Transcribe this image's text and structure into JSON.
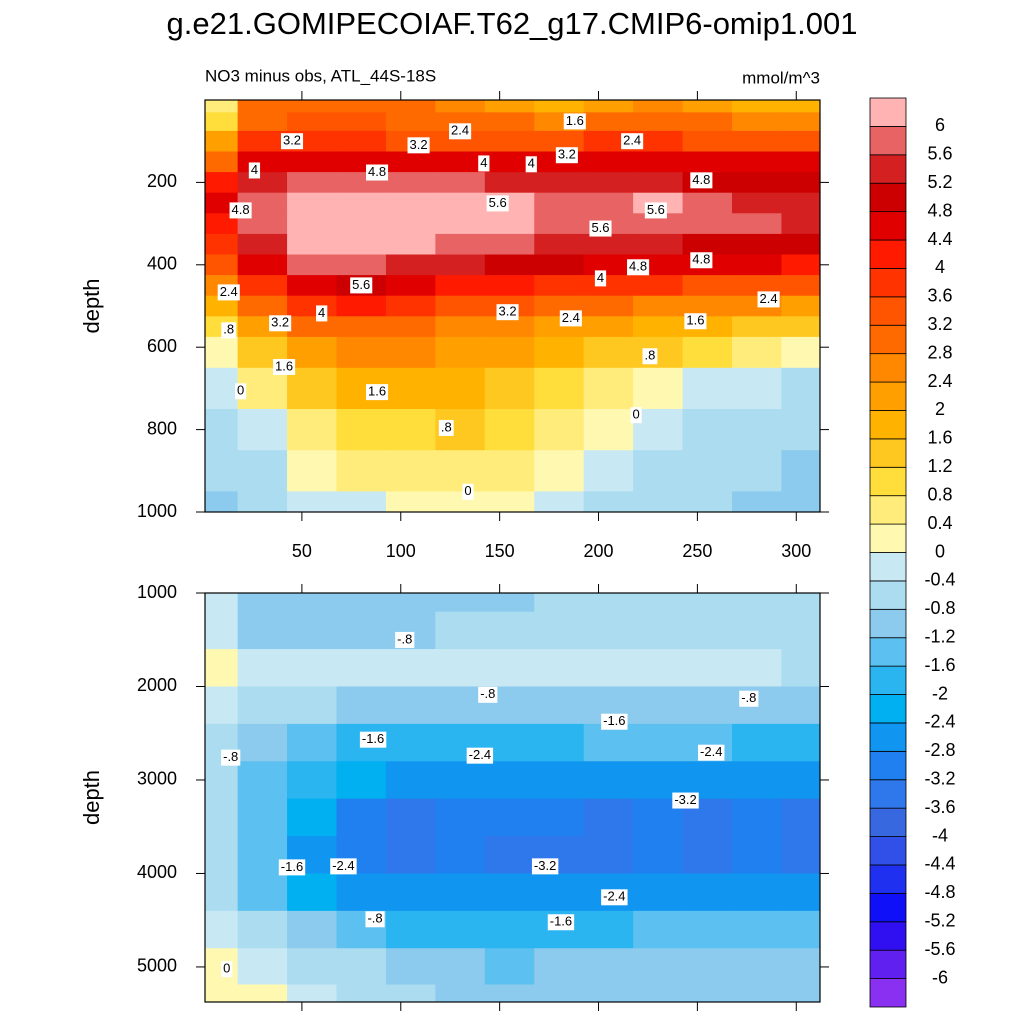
{
  "title": "g.e21.GOMIPECOIAF.T62_g17.CMIP6-omip1.001",
  "subtitle": "NO3 minus obs, ATL_44S-18S",
  "units": "mmol/m^3",
  "colorbar": {
    "levels": [
      -6,
      -5.6,
      -5.2,
      -4.8,
      -4.4,
      -4,
      -3.6,
      -3.2,
      -2.8,
      -2.4,
      -2,
      -1.6,
      -1.2,
      -0.8,
      -0.4,
      0,
      0.4,
      0.8,
      1.2,
      1.6,
      2,
      2.4,
      2.8,
      3.2,
      3.6,
      4,
      4.4,
      4.8,
      5.2,
      5.6,
      6
    ],
    "colors": [
      "#8a30f0",
      "#6020f0",
      "#3010f0",
      "#1010f8",
      "#2030f0",
      "#3050e8",
      "#3868e0",
      "#2f78ec",
      "#2080f0",
      "#1096f0",
      "#00b0f0",
      "#2ab4f0",
      "#5cc0f0",
      "#8ccbee",
      "#acdcf0",
      "#c8e8f4",
      "#fff8b0",
      "#ffec7a",
      "#ffdd3a",
      "#ffc820",
      "#ffb300",
      "#ffa000",
      "#ff8800",
      "#ff6a00",
      "#ff5500",
      "#ff3300",
      "#ff1a00",
      "#e00000",
      "#cc0000",
      "#d42020",
      "#e86464",
      "#ffb3b3"
    ]
  },
  "chart_data": [
    {
      "type": "contour",
      "ylabel": "depth",
      "xlim": [
        1,
        312
      ],
      "ylim": [
        1000,
        0
      ],
      "xticks": [
        50,
        100,
        150,
        200,
        250,
        300
      ],
      "yticks": [
        200,
        400,
        600,
        800,
        1000
      ],
      "show_xtick_labels": true,
      "x": [
        5,
        30,
        55,
        80,
        105,
        130,
        155,
        180,
        205,
        230,
        255,
        280,
        305
      ],
      "depth": [
        10,
        50,
        100,
        150,
        200,
        250,
        300,
        350,
        400,
        450,
        500,
        550,
        600,
        700,
        800,
        900,
        1000
      ],
      "z": [
        [
          0.5,
          2.8,
          3,
          3,
          2.8,
          2.6,
          2,
          1.8,
          2,
          2.4,
          2,
          1.8,
          1.8
        ],
        [
          1,
          3,
          3.2,
          3.2,
          3,
          2.8,
          2.8,
          2.6,
          2.8,
          3,
          2.8,
          2.6,
          2.6
        ],
        [
          2,
          3.6,
          3.6,
          3.6,
          3.4,
          3.4,
          3.4,
          3.4,
          3.6,
          3.6,
          3.4,
          3.4,
          3.4
        ],
        [
          3,
          4.6,
          4.6,
          4.6,
          4.4,
          4.4,
          4.4,
          4.4,
          4.4,
          4.4,
          4.4,
          4.4,
          4.4
        ],
        [
          4,
          5.4,
          5.6,
          5.8,
          5.6,
          5.6,
          5.4,
          5.2,
          5.2,
          5.2,
          5,
          5,
          5
        ],
        [
          4.4,
          5.8,
          6.4,
          6.5,
          6.4,
          6.3,
          6.2,
          5.8,
          5.7,
          6,
          5.6,
          5.4,
          5.2
        ],
        [
          4.2,
          5.6,
          6.5,
          6.6,
          6.5,
          6.3,
          6.2,
          5.8,
          5.7,
          5.9,
          5.6,
          5.6,
          5.2
        ],
        [
          3.8,
          5.2,
          6.3,
          6.3,
          6.2,
          5.8,
          5.6,
          5.4,
          5.2,
          5.2,
          5,
          5,
          4.8
        ],
        [
          3.2,
          4.6,
          5.6,
          5.6,
          5.4,
          5.2,
          5,
          4.8,
          4.6,
          4.6,
          4.4,
          4.4,
          4.2
        ],
        [
          2.6,
          3.6,
          4.6,
          4.8,
          4.6,
          4.2,
          4,
          3.9,
          3.8,
          3.6,
          3.4,
          3.4,
          3.2
        ],
        [
          1.6,
          2.8,
          3.8,
          4,
          3.6,
          3.4,
          3.2,
          3,
          2.8,
          2.6,
          2.4,
          2.4,
          2.2
        ],
        [
          0.8,
          2,
          2.8,
          3,
          2.8,
          2.6,
          2.4,
          2.2,
          2,
          1.8,
          1.6,
          1.4,
          1.2
        ],
        [
          0.2,
          1.4,
          2.2,
          2.4,
          2.4,
          2.2,
          2,
          1.8,
          1.4,
          1.2,
          0.9,
          0.6,
          0.3
        ],
        [
          -0.4,
          0.4,
          1.2,
          1.6,
          1.8,
          1.6,
          1.4,
          1,
          0.6,
          0.2,
          -0.2,
          -0.4,
          -0.6
        ],
        [
          -0.6,
          -0.2,
          0.5,
          0.9,
          1.1,
          1.2,
          0.8,
          0.4,
          0,
          -0.3,
          -0.5,
          -0.6,
          -0.8
        ],
        [
          -0.8,
          -0.5,
          0,
          0.4,
          0.6,
          0.6,
          0.4,
          0,
          -0.3,
          -0.5,
          -0.6,
          -0.8,
          -1
        ],
        [
          -1,
          -0.7,
          -0.4,
          -0.1,
          0.1,
          0.2,
          0.1,
          -0.2,
          -0.5,
          -0.7,
          -0.8,
          -1,
          -1.2
        ]
      ],
      "contour_labels": [
        {
          "x": 45,
          "y": 100,
          "value": 3.2
        },
        {
          "x": 130,
          "y": 76,
          "value": 2.4
        },
        {
          "x": 109,
          "y": 110,
          "value": 3.2
        },
        {
          "x": 188,
          "y": 52,
          "value": 1.6
        },
        {
          "x": 217,
          "y": 100,
          "value": 2.4
        },
        {
          "x": 184,
          "y": 134,
          "value": 3.2
        },
        {
          "x": 142,
          "y": 154,
          "value": 4
        },
        {
          "x": 166,
          "y": 156,
          "value": 4
        },
        {
          "x": 26,
          "y": 171,
          "value": 4
        },
        {
          "x": 88,
          "y": 176,
          "value": 4.8
        },
        {
          "x": 19,
          "y": 268,
          "value": 4.8
        },
        {
          "x": 149,
          "y": 251,
          "value": 5.6
        },
        {
          "x": 229,
          "y": 268,
          "value": 5.6
        },
        {
          "x": 252,
          "y": 195,
          "value": 4.8
        },
        {
          "x": 201,
          "y": 312,
          "value": 5.6
        },
        {
          "x": 252,
          "y": 389,
          "value": 4.8
        },
        {
          "x": 220,
          "y": 406,
          "value": 4.8
        },
        {
          "x": 201,
          "y": 433,
          "value": 4
        },
        {
          "x": 80,
          "y": 450,
          "value": 5.6
        },
        {
          "x": 13,
          "y": 467,
          "value": 2.4
        },
        {
          "x": 286,
          "y": 484,
          "value": 2.4
        },
        {
          "x": 154,
          "y": 515,
          "value": 3.2
        },
        {
          "x": 186,
          "y": 530,
          "value": 2.4
        },
        {
          "x": 60,
          "y": 518,
          "value": 4
        },
        {
          "x": 39,
          "y": 542,
          "value": 3.2
        },
        {
          "x": 249,
          "y": 537,
          "value": 1.6
        },
        {
          "x": 13,
          "y": 559,
          "value": 0.8,
          "label": ".8"
        },
        {
          "x": 41,
          "y": 648,
          "value": 1.6
        },
        {
          "x": 226,
          "y": 622,
          "value": 0.8,
          "label": ".8"
        },
        {
          "x": 88,
          "y": 709,
          "value": 1.6
        },
        {
          "x": 19,
          "y": 707,
          "value": 0
        },
        {
          "x": 219,
          "y": 765,
          "value": 0
        },
        {
          "x": 123,
          "y": 796,
          "value": 0.8,
          "label": ".8"
        },
        {
          "x": 134,
          "y": 951,
          "value": 0
        }
      ]
    },
    {
      "type": "contour",
      "ylabel": "depth",
      "xlim": [
        1,
        312
      ],
      "ylim": [
        5375,
        1000
      ],
      "xticks": [
        50,
        100,
        150,
        200,
        250,
        300
      ],
      "yticks": [
        1000,
        2000,
        3000,
        4000,
        5000
      ],
      "show_xtick_labels": false,
      "x": [
        5,
        30,
        55,
        80,
        105,
        130,
        155,
        180,
        205,
        230,
        255,
        280,
        305
      ],
      "depth": [
        1000,
        1400,
        1800,
        2200,
        2600,
        3000,
        3400,
        3800,
        4200,
        4600,
        5000,
        5375
      ],
      "z": [
        [
          -0.4,
          -1,
          -1.2,
          -1.2,
          -1,
          -0.9,
          -0.9,
          -0.8,
          -0.8,
          -0.8,
          -0.8,
          -0.8,
          -0.8
        ],
        [
          -0.3,
          -0.9,
          -1.1,
          -1.1,
          -1,
          -0.7,
          -0.6,
          -0.6,
          -0.6,
          -0.6,
          -0.6,
          -0.6,
          -0.6
        ],
        [
          0,
          -0.2,
          -0.3,
          -0.4,
          -0.4,
          -0.4,
          -0.2,
          -0.1,
          -0.1,
          -0.2,
          -0.3,
          -0.4,
          -0.5
        ],
        [
          -0.4,
          -0.6,
          -0.8,
          -1,
          -1,
          -0.9,
          -0.9,
          -0.9,
          -0.9,
          -0.9,
          -0.9,
          -0.9,
          -1
        ],
        [
          -0.6,
          -1,
          -1.4,
          -1.7,
          -1.9,
          -1.9,
          -1.8,
          -1.7,
          -1.6,
          -1.5,
          -1.6,
          -1.7,
          -1.8
        ],
        [
          -0.8,
          -1.4,
          -2,
          -2.4,
          -2.6,
          -2.6,
          -2.6,
          -2.6,
          -2.6,
          -2.6,
          -2.6,
          -2.6,
          -2.7
        ],
        [
          -0.8,
          -1.6,
          -2.4,
          -3,
          -3.3,
          -3.1,
          -3.1,
          -3.2,
          -3.3,
          -3.2,
          -3.3,
          -3.1,
          -3.4
        ],
        [
          -0.8,
          -1.6,
          -2.5,
          -3.1,
          -3.5,
          -3.1,
          -3.3,
          -3.4,
          -3.3,
          -3.2,
          -3.5,
          -3.1,
          -3.3
        ],
        [
          -0.7,
          -1.4,
          -2.2,
          -2.6,
          -2.8,
          -2.8,
          -2.8,
          -2.8,
          -2.6,
          -2.6,
          -2.6,
          -2.6,
          -2.6
        ],
        [
          -0.4,
          -0.8,
          -1.2,
          -1.6,
          -1.9,
          -2,
          -2,
          -1.8,
          -1.7,
          -1.6,
          -1.6,
          -1.6,
          -1.6
        ],
        [
          0.1,
          -0.2,
          -0.5,
          -0.8,
          -1,
          -1.2,
          -1.3,
          -1.2,
          -1.2,
          -1.1,
          -1.1,
          -1.1,
          -1.1
        ],
        [
          0.2,
          0,
          -0.3,
          -0.5,
          -0.8,
          -1,
          -1,
          -1,
          -1,
          -1,
          -1,
          -1,
          -1
        ]
      ],
      "contour_labels": [
        {
          "x": 102,
          "y": 1502,
          "value": -0.8,
          "label": "-.8"
        },
        {
          "x": 144,
          "y": 2089,
          "value": -0.8,
          "label": "-.8"
        },
        {
          "x": 14,
          "y": 2761,
          "value": -0.8,
          "label": "-.8"
        },
        {
          "x": 276,
          "y": 2131,
          "value": -0.8,
          "label": "-.8"
        },
        {
          "x": 208,
          "y": 2377,
          "value": -1.6
        },
        {
          "x": 86,
          "y": 2569,
          "value": -1.6
        },
        {
          "x": 140,
          "y": 2740,
          "value": -2.4
        },
        {
          "x": 257,
          "y": 2708,
          "value": -2.4
        },
        {
          "x": 244,
          "y": 3220,
          "value": -3.2
        },
        {
          "x": 173,
          "y": 3924,
          "value": -3.2
        },
        {
          "x": 71,
          "y": 3924,
          "value": -2.4
        },
        {
          "x": 45,
          "y": 3935,
          "value": -1.6
        },
        {
          "x": 208,
          "y": 4255,
          "value": -2.4
        },
        {
          "x": 87,
          "y": 4490,
          "value": -0.8,
          "label": "-.8"
        },
        {
          "x": 181,
          "y": 4522,
          "value": -1.6
        },
        {
          "x": 12,
          "y": 5023,
          "value": 0
        }
      ]
    }
  ]
}
